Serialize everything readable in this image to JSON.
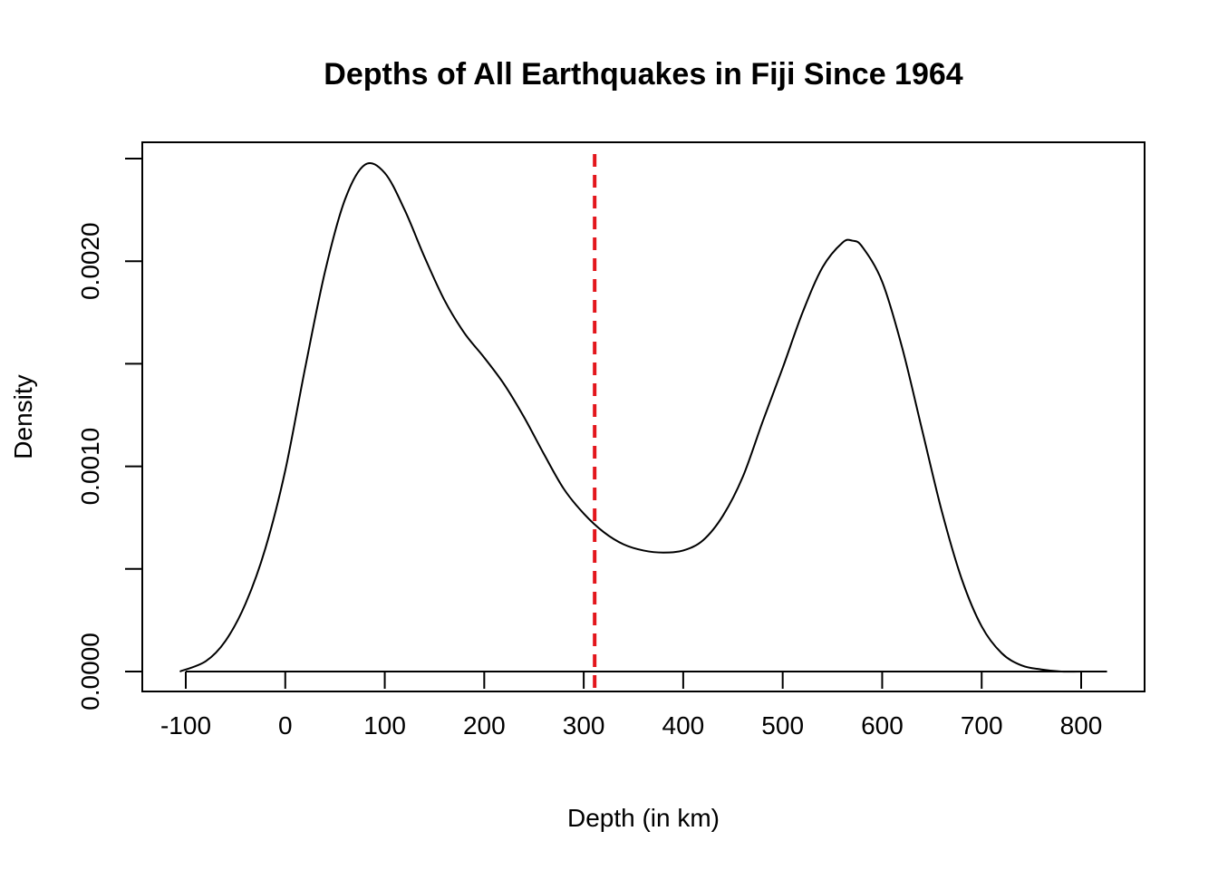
{
  "chart_data": {
    "type": "line",
    "title": "Depths of All Earthquakes in Fiji Since 1964",
    "xlabel": "Depth (in km)",
    "ylabel": "Density",
    "xlim": [
      -100,
      800
    ],
    "ylim": [
      0,
      0.0025
    ],
    "x_ticks": [
      -100,
      0,
      100,
      200,
      300,
      400,
      500,
      600,
      700,
      800
    ],
    "x_tick_labels": [
      "-100",
      "0",
      "100",
      "200",
      "300",
      "400",
      "500",
      "600",
      "700",
      "800"
    ],
    "y_ticks": [
      0,
      0.0005,
      0.001,
      0.0015,
      0.002,
      0.0025
    ],
    "y_tick_labels": [
      "0.0000",
      "",
      "0.0010",
      "",
      "0.0020",
      ""
    ],
    "grid": false,
    "legend": "none",
    "series": [
      {
        "color": "#000000",
        "x": [
          -106,
          -80,
          -60,
          -40,
          -20,
          0,
          20,
          40,
          60,
          80,
          100,
          120,
          140,
          160,
          180,
          200,
          220,
          240,
          260,
          280,
          300,
          320,
          340,
          360,
          380,
          400,
          420,
          440,
          460,
          480,
          500,
          520,
          540,
          560,
          570,
          580,
          600,
          620,
          640,
          660,
          680,
          700,
          720,
          740,
          760,
          780,
          800,
          826
        ],
        "y": [
          0.0,
          5e-05,
          0.00015,
          0.00033,
          0.0006,
          0.00098,
          0.00148,
          0.00195,
          0.0023,
          0.00247,
          0.00243,
          0.00225,
          0.00202,
          0.00181,
          0.00165,
          0.00153,
          0.0014,
          0.00124,
          0.00106,
          0.00089,
          0.00077,
          0.00068,
          0.00062,
          0.00059,
          0.00058,
          0.00059,
          0.00064,
          0.00076,
          0.00095,
          0.00122,
          0.00148,
          0.00175,
          0.00197,
          0.00209,
          0.0021,
          0.00207,
          0.0019,
          0.00158,
          0.00118,
          0.00078,
          0.00045,
          0.00022,
          9e-05,
          3e-05,
          1e-05,
          0.0,
          0.0,
          0.0
        ]
      }
    ],
    "reference_line": {
      "x": 311,
      "color": "#e3161c",
      "style": "dashed"
    }
  }
}
